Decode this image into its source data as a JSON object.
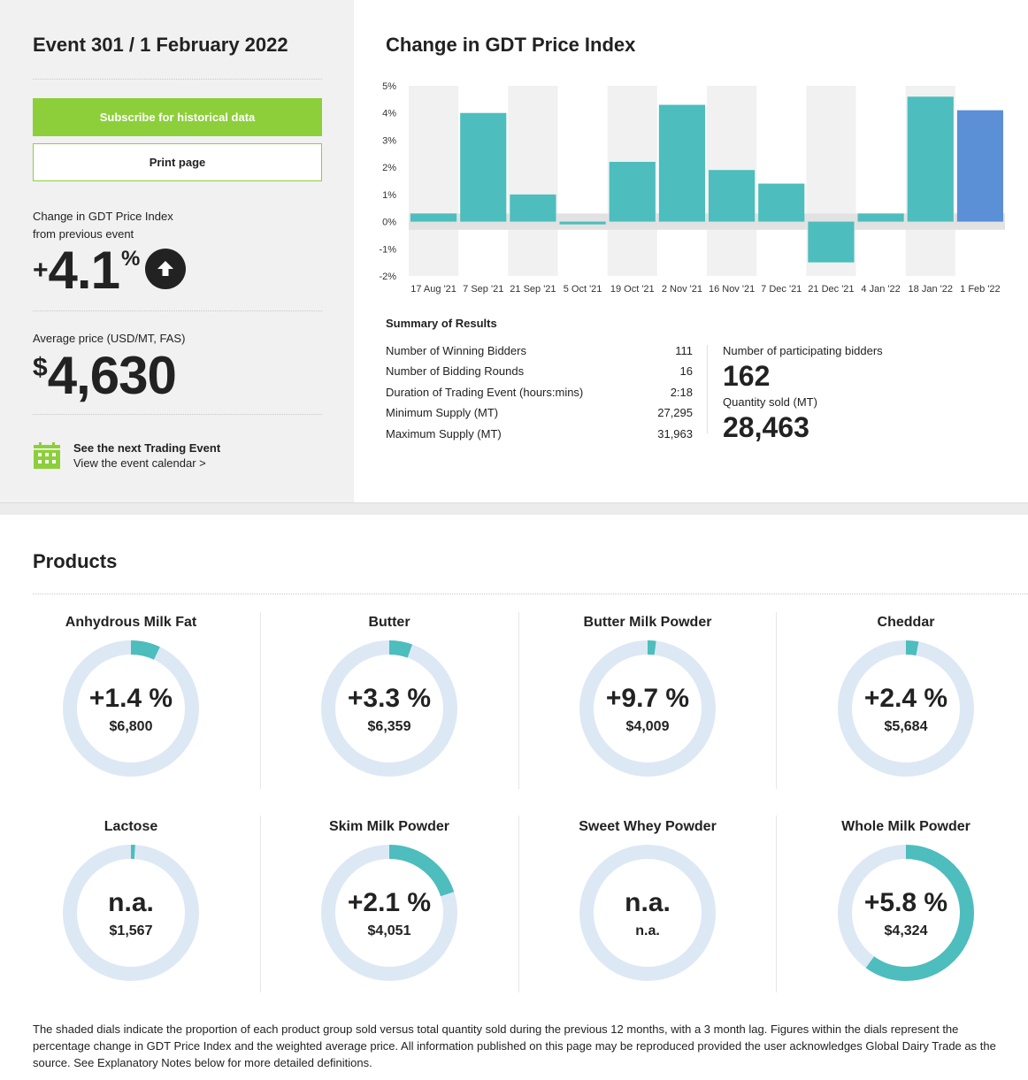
{
  "sidebar": {
    "event_title": "Event 301 / 1 February 2022",
    "subscribe_label": "Subscribe for historical data",
    "print_label": "Print page",
    "change_label_1": "Change in GDT Price Index",
    "change_label_2": "from previous event",
    "change_sign": "+",
    "change_value": "4.1",
    "change_unit": "%",
    "change_direction_icon": "arrow-up-circle-icon",
    "avg_price_label": "Average price (USD/MT, FAS)",
    "avg_price_currency": "$",
    "avg_price_value": "4,630",
    "next_event_title": "See the next Trading Event",
    "next_event_link": "View the event calendar >",
    "calendar_icon": "calendar-icon",
    "accent_color": "#8dcf3b"
  },
  "chart": {
    "title": "Change in GDT Price Index"
  },
  "chart_data": {
    "type": "bar",
    "categories": [
      "17 Aug '21",
      "7 Sep '21",
      "21 Sep '21",
      "5 Oct '21",
      "19 Oct '21",
      "2 Nov '21",
      "16 Nov '21",
      "7 Dec '21",
      "21 Dec '21",
      "4 Jan '22",
      "18 Jan '22",
      "1 Feb '22"
    ],
    "values": [
      0.3,
      4.0,
      1.0,
      -0.1,
      2.2,
      4.3,
      1.9,
      1.4,
      -1.5,
      0.3,
      4.6,
      4.1
    ],
    "y_ticks": [
      "5%",
      "4%",
      "3%",
      "2%",
      "1%",
      "0%",
      "-1%",
      "-2%"
    ],
    "ylim": [
      -2,
      5
    ],
    "bar_color": "#4dbdbd",
    "highlight_color": "#5b8fd6",
    "highlight_index": 11,
    "grid": false
  },
  "summary": {
    "title": "Summary of Results",
    "rows": [
      {
        "label": "Number of Winning Bidders",
        "value": "111"
      },
      {
        "label": "Number of Bidding Rounds",
        "value": "16"
      },
      {
        "label": "Duration of Trading Event (hours:mins)",
        "value": "2:18"
      },
      {
        "label": "Minimum Supply (MT)",
        "value": "27,295"
      },
      {
        "label": "Maximum Supply (MT)",
        "value": "31,963"
      }
    ],
    "participating_label": "Number of participating bidders",
    "participating_value": "162",
    "quantity_label": "Quantity sold (MT)",
    "quantity_value": "28,463"
  },
  "products": {
    "title": "Products",
    "dial_color": "#4dbdbd",
    "dial_track_color": "#dde8f5",
    "items": [
      {
        "name": "Anhydrous Milk Fat",
        "change": "+1.4 %",
        "price": "$6,800",
        "share": 0.07
      },
      {
        "name": "Butter",
        "change": "+3.3 %",
        "price": "$6,359",
        "share": 0.055
      },
      {
        "name": "Butter Milk Powder",
        "change": "+9.7 %",
        "price": "$4,009",
        "share": 0.02
      },
      {
        "name": "Cheddar",
        "change": "+2.4 %",
        "price": "$5,684",
        "share": 0.03
      },
      {
        "name": "Lactose",
        "change": "n.a.",
        "price": "$1,567",
        "share": 0.01
      },
      {
        "name": "Skim Milk Powder",
        "change": "+2.1 %",
        "price": "$4,051",
        "share": 0.2
      },
      {
        "name": "Sweet Whey Powder",
        "change": "n.a.",
        "price": "n.a.",
        "share": 0
      },
      {
        "name": "Whole Milk Powder",
        "change": "+5.8 %",
        "price": "$4,324",
        "share": 0.6
      }
    ],
    "footnote": "The shaded dials indicate the proportion of each product group sold versus total quantity sold during the previous 12 months, with a 3 month lag. Figures within the dials represent the percentage change in GDT Price Index and the weighted average price. All information published on this page may be reproduced provided the user acknowledges Global Dairy Trade as the source. See Explanatory Notes below for more detailed definitions."
  }
}
